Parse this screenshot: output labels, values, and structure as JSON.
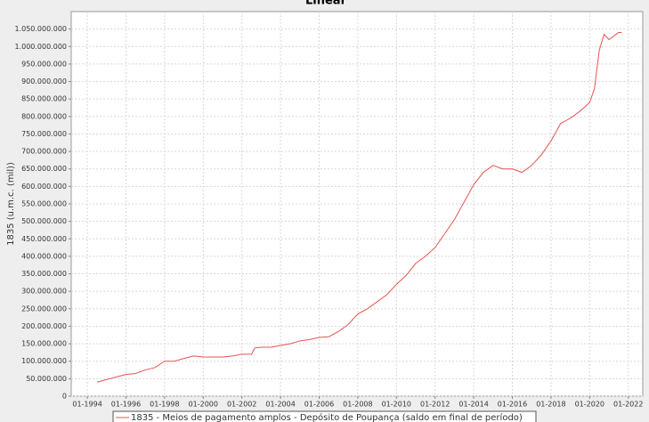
{
  "chart_data": {
    "type": "line",
    "title": "Linear",
    "y_label": "1835 (u.m.c. (mil))",
    "xlim": [
      "03-1993",
      "10-2022"
    ],
    "xticks": [
      "01-1994",
      "01-1996",
      "01-1998",
      "01-2000",
      "01-2002",
      "01-2004",
      "01-2006",
      "01-2008",
      "01-2010",
      "01-2012",
      "01-2014",
      "01-2016",
      "01-2018",
      "01-2020",
      "01-2022"
    ],
    "ylim": [
      0,
      1100000000
    ],
    "yticks": [
      0,
      {
        "value": 50000000,
        "label": "50.000.000"
      },
      {
        "value": 100000000,
        "label": "100.000.000"
      },
      {
        "value": 150000000,
        "label": "150.000.000"
      },
      {
        "value": 200000000,
        "label": "200.000.000"
      },
      {
        "value": 250000000,
        "label": "250.000.000"
      },
      {
        "value": 300000000,
        "label": "300.000.000"
      },
      {
        "value": 350000000,
        "label": "350.000.000"
      },
      {
        "value": 400000000,
        "label": "400.000.000"
      },
      {
        "value": 450000000,
        "label": "450.000.000"
      },
      {
        "value": 500000000,
        "label": "500.000.000"
      },
      {
        "value": 550000000,
        "label": "550.000.000"
      },
      {
        "value": 600000000,
        "label": "600.000.000"
      },
      {
        "value": 650000000,
        "label": "650.000.000"
      },
      {
        "value": 700000000,
        "label": "700.000.000"
      },
      {
        "value": 750000000,
        "label": "750.000.000"
      },
      {
        "value": 800000000,
        "label": "800.000.000"
      },
      {
        "value": 850000000,
        "label": "850.000.000"
      },
      {
        "value": 900000000,
        "label": "900.000.000"
      },
      {
        "value": 950000000,
        "label": "950.000.000"
      },
      {
        "value": 1000000000,
        "label": "1.000.000.000"
      },
      {
        "value": 1050000000,
        "label": "1.050.000.000"
      }
    ],
    "grid": true,
    "x": [
      "07-1994",
      "07-1995",
      "01-1996",
      "07-1996",
      "01-1997",
      "07-1997",
      "01-1998",
      "07-1998",
      "01-1999",
      "07-1999",
      "01-2000",
      "07-2000",
      "01-2001",
      "07-2001",
      "01-2002",
      "07-2002",
      "09-2002",
      "01-2003",
      "07-2003",
      "01-2004",
      "07-2004",
      "01-2005",
      "07-2005",
      "01-2006",
      "07-2006",
      "01-2007",
      "07-2007",
      "01-2008",
      "07-2008",
      "01-2009",
      "07-2009",
      "01-2010",
      "07-2010",
      "01-2011",
      "07-2011",
      "01-2012",
      "07-2012",
      "01-2013",
      "07-2013",
      "01-2014",
      "07-2014",
      "01-2015",
      "07-2015",
      "01-2016",
      "07-2016",
      "01-2017",
      "07-2017",
      "01-2018",
      "07-2018",
      "01-2019",
      "07-2019",
      "01-2020",
      "04-2020",
      "07-2020",
      "10-2020",
      "01-2021",
      "07-2021",
      "09-2021"
    ],
    "series": [
      {
        "name": "1835 - Meios de pagamento amplos - Depósito de Poupança (saldo em final de período)",
        "color": "#e8534f",
        "values": [
          40000000,
          55000000,
          62000000,
          65000000,
          75000000,
          82000000,
          100000000,
          100000000,
          108000000,
          115000000,
          112000000,
          112000000,
          112000000,
          115000000,
          120000000,
          120000000,
          138000000,
          140000000,
          140000000,
          145000000,
          150000000,
          158000000,
          162000000,
          168000000,
          170000000,
          185000000,
          205000000,
          235000000,
          250000000,
          270000000,
          290000000,
          320000000,
          345000000,
          380000000,
          400000000,
          425000000,
          465000000,
          505000000,
          555000000,
          605000000,
          640000000,
          660000000,
          650000000,
          650000000,
          640000000,
          660000000,
          690000000,
          730000000,
          780000000,
          795000000,
          815000000,
          840000000,
          880000000,
          990000000,
          1035000000,
          1020000000,
          1040000000,
          1040000000
        ]
      }
    ]
  }
}
